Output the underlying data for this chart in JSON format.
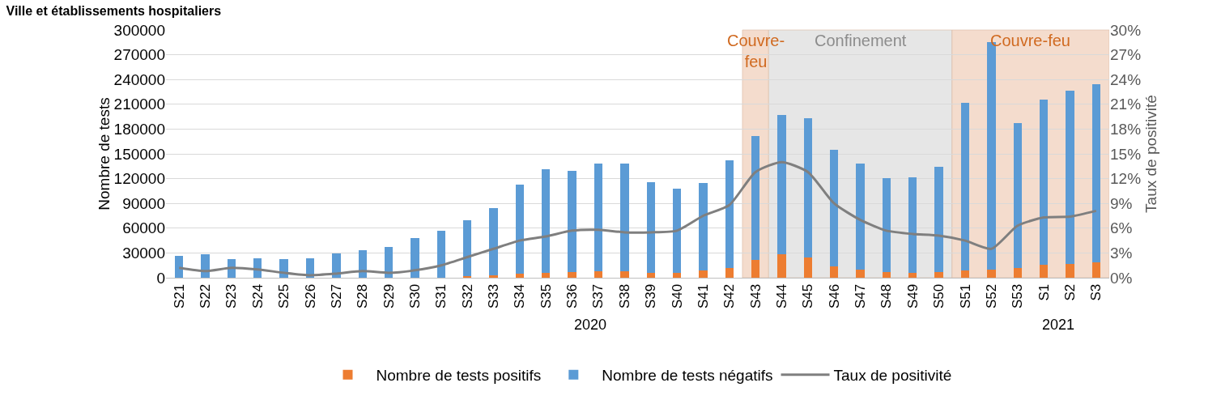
{
  "chart_data": {
    "type": "bar",
    "title": "Ville et établissements hospitaliers",
    "ylabel": "Nombre de tests",
    "y2label": "Taux de positivité",
    "categories": [
      "S21",
      "S22",
      "S23",
      "S24",
      "S25",
      "S26",
      "S27",
      "S28",
      "S29",
      "S30",
      "S31",
      "S32",
      "S33",
      "S34",
      "S35",
      "S36",
      "S37",
      "S38",
      "S39",
      "S40",
      "S41",
      "S42",
      "S43",
      "S44",
      "S45",
      "S46",
      "S47",
      "S48",
      "S49",
      "S50",
      "S51",
      "S52",
      "S53",
      "S1",
      "S2",
      "S3"
    ],
    "stacked": true,
    "series": [
      {
        "name": "Nombre de tests positifs",
        "color": "#ed7d31",
        "values": [
          0,
          0,
          0,
          0,
          0,
          0,
          0,
          0,
          0,
          0,
          null,
          2000,
          3000,
          5000,
          6000,
          7000,
          8000,
          8000,
          6000,
          6000,
          9000,
          12000,
          22000,
          28000,
          25000,
          14000,
          10000,
          7000,
          6000,
          7000,
          9000,
          10000,
          12000,
          16000,
          17000,
          19000
        ]
      },
      {
        "name": "Nombre de tests négatifs",
        "color": "#5b9bd5",
        "values": [
          26000,
          28000,
          23000,
          24000,
          23000,
          24000,
          29000,
          33000,
          37000,
          48000,
          57000,
          68000,
          81000,
          108000,
          125000,
          122000,
          130000,
          130000,
          110000,
          102000,
          106000,
          130000,
          150000,
          169000,
          168000,
          141000,
          128000,
          114000,
          116000,
          127000,
          203000,
          275000,
          175000,
          200000,
          209000,
          215000
        ]
      },
      {
        "name": "Taux de positivité",
        "type": "line",
        "axis": "y2",
        "color": "#7f7f7f",
        "values": [
          1.2,
          0.8,
          1.2,
          1.0,
          0.6,
          0.3,
          0.5,
          0.8,
          0.6,
          0.9,
          1.5,
          2.5,
          3.5,
          4.5,
          5.0,
          5.7,
          5.8,
          5.5,
          5.5,
          5.7,
          7.5,
          8.8,
          12.8,
          14.0,
          12.8,
          9.0,
          7.0,
          5.7,
          5.3,
          5.1,
          4.5,
          3.5,
          6.3,
          7.3,
          7.4,
          8.1
        ]
      }
    ],
    "ylim": [
      0,
      300000
    ],
    "yticks": [
      0,
      30000,
      60000,
      90000,
      120000,
      150000,
      180000,
      210000,
      240000,
      270000,
      300000
    ],
    "y2lim": [
      0,
      30
    ],
    "y2ticks": [
      {
        "value": 0,
        "label": "0%"
      },
      {
        "value": 3,
        "label": "3%"
      },
      {
        "value": 6,
        "label": "6%"
      },
      {
        "value": 9,
        "label": "9%"
      },
      {
        "value": 12,
        "label": "12%"
      },
      {
        "value": 15,
        "label": "15%"
      },
      {
        "value": 18,
        "label": "18%"
      },
      {
        "value": 21,
        "label": "21%"
      },
      {
        "value": 24,
        "label": "24%"
      },
      {
        "value": 27,
        "label": "27%"
      },
      {
        "value": 30,
        "label": "30%"
      }
    ],
    "bands": [
      {
        "axis": "x",
        "from": "S43",
        "to": "S43",
        "label": "Couvre-feu",
        "color": "#f4dccd"
      },
      {
        "axis": "x",
        "from": "S44",
        "to": "S50",
        "label": "Confinement",
        "color": "#e6e6e6"
      },
      {
        "axis": "x",
        "from": "S51",
        "to": "S3",
        "label": "Couvre-feu",
        "color": "#f4dccd"
      }
    ],
    "annotations": [
      "2020",
      "2021"
    ],
    "grid": "y",
    "legend": "bottom",
    "marker": "none",
    "line_style": "solid"
  }
}
